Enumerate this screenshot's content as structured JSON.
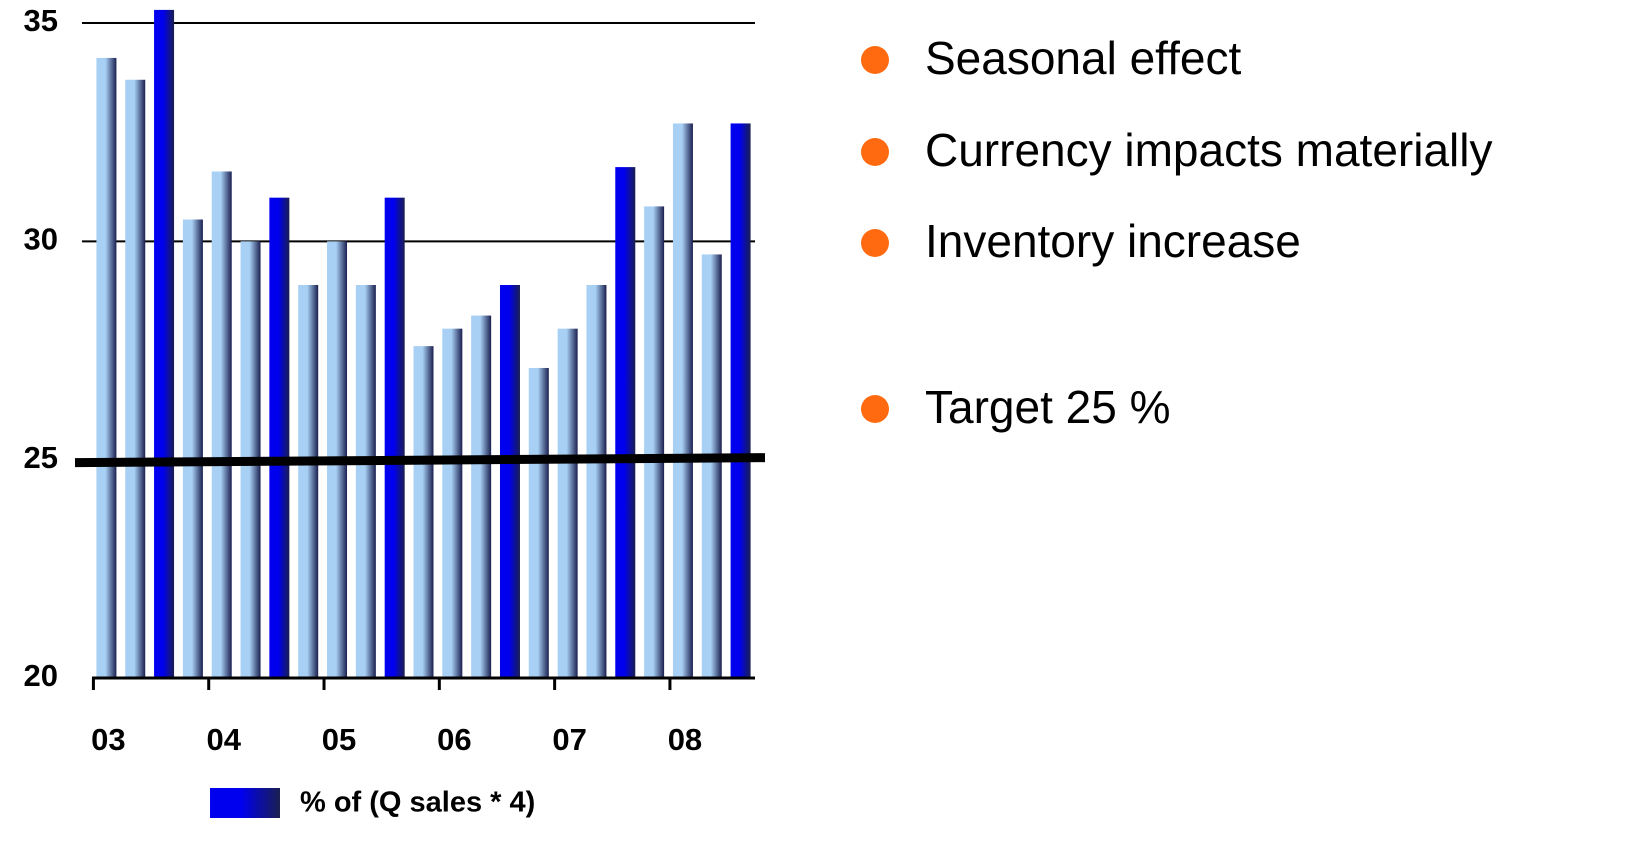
{
  "chart_data": {
    "type": "bar",
    "categories": [
      "03",
      null,
      null,
      null,
      "04",
      null,
      null,
      null,
      "05",
      null,
      null,
      null,
      "06",
      null,
      null,
      null,
      "07",
      null,
      null,
      null,
      "08",
      null,
      null
    ],
    "series": [
      {
        "name": "% of (Q sales * 4)",
        "color": "#0000ee",
        "values": [
          34.2,
          33.7,
          35.3,
          30.5,
          31.6,
          30.0,
          31.0,
          29.0,
          30.0,
          29.0,
          31.0,
          27.6,
          28.0,
          28.3,
          29.0,
          27.1,
          28.0,
          29.0,
          31.7,
          30.8,
          32.7,
          29.7,
          32.7
        ],
        "colors": [
          "#a8d0f4",
          "#a8d0f4",
          "#0000ee",
          "#a8d0f4",
          "#a8d0f4",
          "#a8d0f4",
          "#0000ee",
          "#a8d0f4",
          "#a8d0f4",
          "#a8d0f4",
          "#0000ee",
          "#a8d0f4",
          "#a8d0f4",
          "#a8d0f4",
          "#0000ee",
          "#a8d0f4",
          "#a8d0f4",
          "#a8d0f4",
          "#0000ee",
          "#a8d0f4",
          "#a8d0f4",
          "#a8d0f4",
          "#0000ee"
        ]
      }
    ],
    "ylim": [
      20,
      35
    ],
    "yticks": [
      20,
      25,
      30,
      35
    ],
    "grid": true,
    "reference_line": 25,
    "annotations": [
      "Seasonal effect",
      "Currency impacts materially",
      "Inventory increase",
      "Target 25 %"
    ],
    "annotation_color": "#ff6a10"
  }
}
